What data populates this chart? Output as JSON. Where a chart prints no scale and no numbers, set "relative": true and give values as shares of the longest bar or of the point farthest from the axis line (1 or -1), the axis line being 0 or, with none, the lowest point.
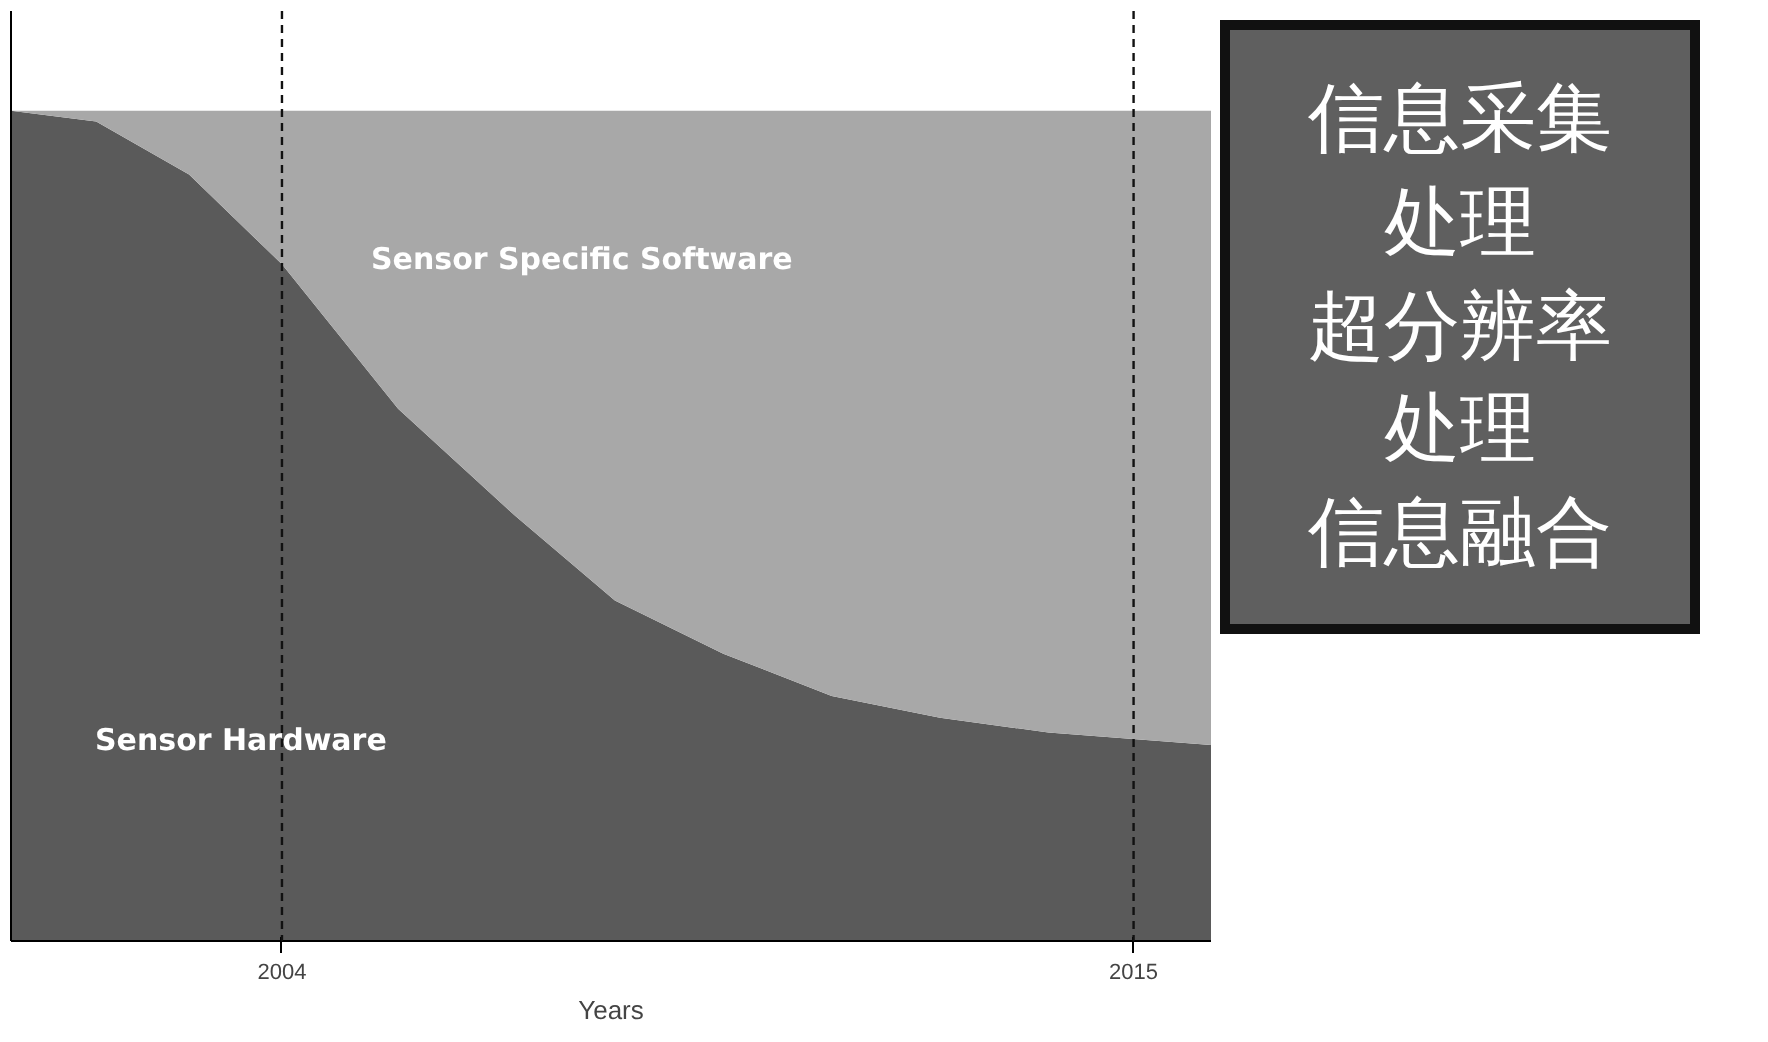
{
  "chart_data": {
    "type": "area",
    "stacked": true,
    "relative": true,
    "xlabel": "Years",
    "x": [
      2000.5,
      2001.6,
      2002.8,
      2004.0,
      2005.5,
      2007.0,
      2008.3,
      2009.7,
      2011.1,
      2012.5,
      2013.9,
      2016.0
    ],
    "xlim": [
      2000.5,
      2016.0
    ],
    "xticks": [
      2004,
      2015
    ],
    "tick_labels": "x",
    "grid": false,
    "series": [
      {
        "name": "Sensor Hardware",
        "color": "#5a5a5a",
        "values": [
          1.0,
          0.987,
          0.923,
          0.815,
          0.641,
          0.513,
          0.41,
          0.346,
          0.295,
          0.269,
          0.251,
          0.236
        ]
      },
      {
        "name": "Sensor Specific Software",
        "color": "#a8a8a8",
        "values": [
          0.0,
          0.013,
          0.077,
          0.185,
          0.359,
          0.487,
          0.59,
          0.654,
          0.705,
          0.731,
          0.749,
          0.764
        ]
      }
    ],
    "ref_lines": [
      {
        "axis": "x",
        "value": 2004,
        "label": null,
        "color": "#111111",
        "line_style": "dashed"
      },
      {
        "axis": "x",
        "value": 2015,
        "label": null,
        "color": "#111111",
        "line_style": "dashed"
      }
    ],
    "annotations": [
      "信息采集",
      "处理",
      "超分辨率",
      "处理",
      "信息融合"
    ]
  }
}
